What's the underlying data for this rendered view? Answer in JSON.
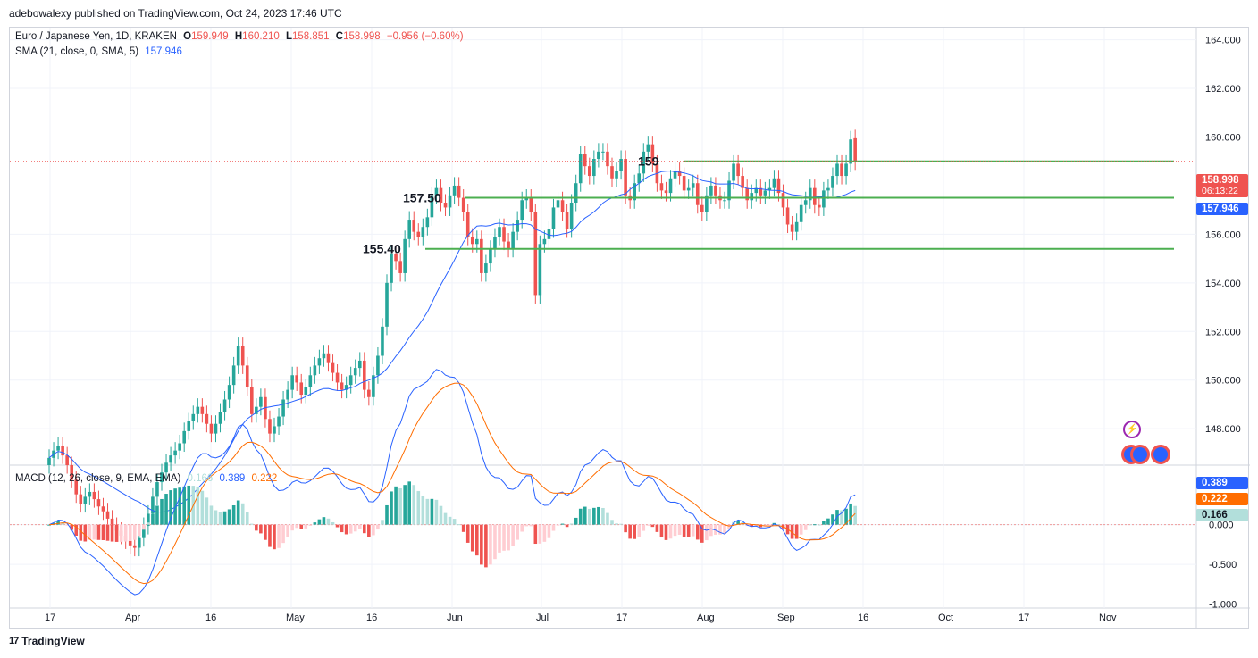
{
  "publisher": "adebowalexy published on TradingView.com, Oct 24, 2023 17:46 UTC",
  "legend": {
    "symbol": "Euro / Japanese Yen, 1D, KRAKEN",
    "o_label": "O",
    "o_value": "159.949",
    "h_label": "H",
    "h_value": "160.210",
    "l_label": "L",
    "l_value": "158.851",
    "c_label": "C",
    "c_value": "158.998",
    "change": "−0.956 (−0.60%)",
    "sma_label": "SMA (21, close, 0, SMA, 5)",
    "sma_value": "157.946"
  },
  "macd_legend": {
    "label": "MACD (12, 26, close, 9, EMA, EMA)",
    "hist": "0.166",
    "macd": "0.389",
    "signal": "0.222"
  },
  "price_tags": {
    "last_price": "158.998",
    "countdown": "06:13:22",
    "sma": "157.946",
    "macd": "0.389",
    "signal": "0.222",
    "hist": "0.166"
  },
  "levels": [
    {
      "label": "159",
      "value": 159.0
    },
    {
      "label": "157.50",
      "value": 157.5
    },
    {
      "label": "155.40",
      "value": 155.4
    }
  ],
  "footer": "TradingView",
  "colors": {
    "up": "#26a69a",
    "down": "#ef5350",
    "sma": "#2962ff",
    "signal": "#ff6d00",
    "level": "#4caf50",
    "hist_up_light": "#b2dfdb",
    "hist_down_light": "#ffcdd2"
  },
  "chart_data": {
    "type": "candlestick",
    "title": "Euro / Japanese Yen, 1D, KRAKEN",
    "x_ticks": [
      "17",
      "Apr",
      "16",
      "May",
      "16",
      "Jun",
      "Jul",
      "17",
      "Aug",
      "Sep",
      "16",
      "Oct",
      "17",
      "Nov"
    ],
    "price_ticks": [
      "164.000",
      "162.000",
      "160.000",
      "156.000",
      "154.000",
      "152.000",
      "150.000",
      "148.000"
    ],
    "price_range": [
      146.5,
      164.5
    ],
    "macd_ticks": [
      "0.000",
      "-0.500",
      "-1.000"
    ],
    "macd_range": [
      -1.05,
      0.75
    ],
    "closes": [
      146.8,
      147.1,
      147.3,
      146.9,
      146.5,
      145.9,
      145.3,
      144.9,
      145.2,
      145.4,
      145.1,
      144.8,
      144.6,
      144.3,
      144.0,
      143.8,
      143.6,
      143.4,
      143.2,
      143.1,
      143.5,
      144.0,
      144.5,
      145.2,
      145.8,
      146.2,
      146.6,
      146.9,
      147.1,
      147.4,
      147.9,
      148.3,
      148.6,
      148.9,
      148.6,
      148.2,
      147.8,
      148.2,
      148.7,
      149.2,
      149.8,
      150.6,
      151.4,
      150.6,
      149.7,
      148.6,
      148.9,
      149.3,
      148.4,
      147.8,
      148.1,
      148.5,
      149.2,
      149.6,
      150.2,
      149.9,
      149.4,
      149.7,
      150.2,
      150.6,
      150.9,
      151.1,
      150.7,
      150.3,
      149.9,
      149.6,
      149.8,
      150.2,
      150.5,
      150.8,
      149.6,
      149.3,
      150.2,
      151.0,
      152.2,
      154.0,
      155.2,
      154.9,
      154.4,
      155.8,
      156.6,
      156.1,
      155.9,
      156.3,
      156.7,
      157.6,
      157.9,
      157.3,
      157.1,
      157.6,
      158.0,
      157.5,
      156.9,
      155.9,
      155.6,
      155.8,
      154.4,
      154.8,
      155.4,
      155.9,
      156.3,
      155.7,
      155.4,
      156.1,
      156.6,
      157.4,
      157.5,
      156.9,
      153.5,
      155.6,
      155.8,
      156.2,
      157.1,
      157.4,
      156.9,
      156.2,
      157.3,
      158.1,
      159.3,
      158.8,
      158.4,
      159.1,
      159.4,
      159.4,
      158.8,
      158.3,
      158.6,
      159.1,
      157.6,
      157.4,
      158.1,
      158.5,
      159.4,
      159.7,
      158.9,
      158.1,
      157.8,
      157.7,
      158.3,
      158.6,
      158.4,
      157.8,
      157.9,
      158.1,
      157.2,
      156.9,
      157.6,
      158.0,
      157.6,
      157.4,
      157.4,
      158.2,
      158.9,
      158.4,
      157.9,
      157.4,
      157.7,
      157.9,
      157.6,
      157.8,
      157.9,
      158.3,
      157.7,
      157.1,
      156.4,
      156.1,
      156.5,
      157.2,
      157.4,
      157.9,
      157.2,
      157.1,
      157.8,
      157.9,
      158.4,
      158.9,
      158.4,
      158.9,
      159.9,
      158.998
    ],
    "opens": [
      146.5,
      146.8,
      147.1,
      147.3,
      146.9,
      146.5,
      145.9,
      145.3,
      144.9,
      145.2,
      145.4,
      145.1,
      144.8,
      144.6,
      144.3,
      144.0,
      143.8,
      143.6,
      143.4,
      143.2,
      143.1,
      143.5,
      144.0,
      144.5,
      145.2,
      145.8,
      146.2,
      146.6,
      146.9,
      147.1,
      147.4,
      147.9,
      148.3,
      148.6,
      148.9,
      148.6,
      148.2,
      147.8,
      148.2,
      148.7,
      149.2,
      149.8,
      150.6,
      151.4,
      150.6,
      149.7,
      148.6,
      148.9,
      149.3,
      148.4,
      147.8,
      148.1,
      148.5,
      149.2,
      149.6,
      150.2,
      149.9,
      149.4,
      149.7,
      150.2,
      150.6,
      150.9,
      151.1,
      150.7,
      150.3,
      149.9,
      149.6,
      149.8,
      150.2,
      150.5,
      150.8,
      149.6,
      149.3,
      150.2,
      151.0,
      152.2,
      154.0,
      155.2,
      154.9,
      154.4,
      155.8,
      156.6,
      156.1,
      155.9,
      156.3,
      156.7,
      157.6,
      157.9,
      157.3,
      157.1,
      157.6,
      158.0,
      157.5,
      156.9,
      155.9,
      155.6,
      155.8,
      154.4,
      154.8,
      155.4,
      155.9,
      156.3,
      155.7,
      155.4,
      156.1,
      156.6,
      157.4,
      157.5,
      156.9,
      153.5,
      155.6,
      155.8,
      156.2,
      157.1,
      157.4,
      156.9,
      156.2,
      157.3,
      158.1,
      159.3,
      158.8,
      158.4,
      159.1,
      159.4,
      159.4,
      158.8,
      158.3,
      158.6,
      159.1,
      157.6,
      157.4,
      158.1,
      158.5,
      159.4,
      159.7,
      158.9,
      158.1,
      157.8,
      157.7,
      158.3,
      158.6,
      158.4,
      157.8,
      157.9,
      158.1,
      157.2,
      156.9,
      157.6,
      158.0,
      157.6,
      157.4,
      157.4,
      158.2,
      158.9,
      158.4,
      157.9,
      157.4,
      157.7,
      157.9,
      157.6,
      157.8,
      157.9,
      158.3,
      157.7,
      157.1,
      156.4,
      156.1,
      156.5,
      157.2,
      157.4,
      157.9,
      157.2,
      157.1,
      157.8,
      157.9,
      158.4,
      158.9,
      158.4,
      158.9,
      159.949
    ],
    "sma_value": 157.946,
    "macd_value": 0.389,
    "signal_value": 0.222,
    "hist_value": 0.166
  }
}
